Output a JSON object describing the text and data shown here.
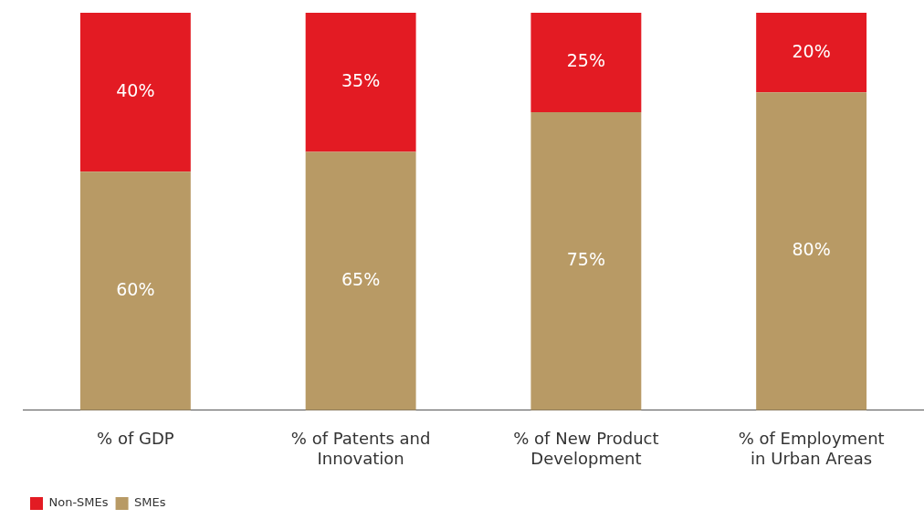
{
  "chart_data": {
    "type": "bar",
    "stacked": true,
    "categories": [
      "% of GDP",
      "% of Patents and Innovation",
      "% of New Product Development",
      "% of Employment in Urban Areas"
    ],
    "series": [
      {
        "name": "SMEs",
        "color": "#b89a65",
        "values": [
          60,
          65,
          75,
          80
        ],
        "value_labels": [
          "60%",
          "65%",
          "75%",
          "80%"
        ]
      },
      {
        "name": "Non-SMEs",
        "color": "#e31b23",
        "values": [
          40,
          35,
          25,
          20
        ],
        "value_labels": [
          "40%",
          "35%",
          "25%",
          "20%"
        ]
      }
    ],
    "ylim": [
      0,
      100
    ],
    "tick_labels": "x",
    "grid": false,
    "legend": "bottom left"
  }
}
